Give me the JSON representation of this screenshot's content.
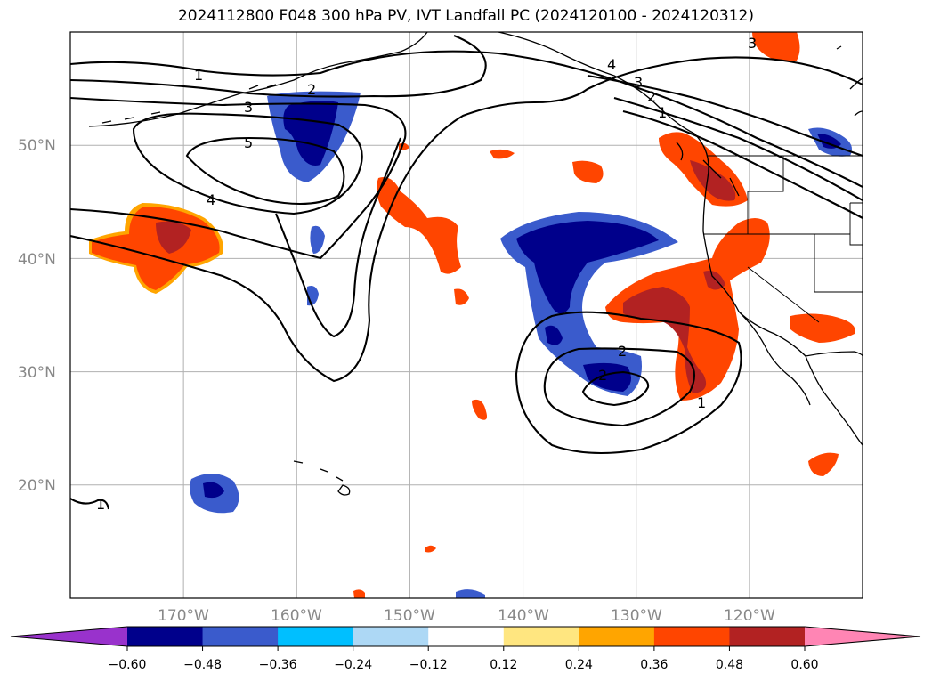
{
  "title": "2024112800 F048 300 hPa PV, IVT Landfall PC (2024120100 - 2024120312)",
  "map": {
    "projection": "equirectangular",
    "lon_range": [
      -180,
      -110
    ],
    "lat_range": [
      10,
      60
    ],
    "lat_ticks": [
      {
        "value": 50,
        "label": "50°N"
      },
      {
        "value": 40,
        "label": "40°N"
      },
      {
        "value": 30,
        "label": "30°N"
      },
      {
        "value": 20,
        "label": "20°N"
      }
    ],
    "lon_ticks": [
      {
        "value": -170,
        "label": "170°W"
      },
      {
        "value": -160,
        "label": "160°W"
      },
      {
        "value": -150,
        "label": "150°W"
      },
      {
        "value": -140,
        "label": "140°W"
      },
      {
        "value": -130,
        "label": "130°W"
      },
      {
        "value": -120,
        "label": "120°W"
      }
    ],
    "contour_labels": [
      "1",
      "2",
      "3",
      "4",
      "5",
      "2",
      "1",
      "4",
      "3",
      "2",
      "1",
      "2",
      "1",
      "3"
    ]
  },
  "colorbar": {
    "ticks": [
      "−0.60",
      "−0.48",
      "−0.36",
      "−0.24",
      "−0.12",
      "0.12",
      "0.24",
      "0.36",
      "0.48",
      "0.60"
    ],
    "colors": [
      "#9932cc",
      "#00008b",
      "#3a5bcc",
      "#00bfff",
      "#add8f5",
      "#ffffff",
      "#ffe680",
      "#ffa500",
      "#ff4500",
      "#b22222",
      "#ff85b4"
    ]
  },
  "chart_data": {
    "type": "heatmap",
    "title": "2024112800 F048 300 hPa PV, IVT Landfall PC (2024120100 - 2024120312)",
    "colorbar_levels": [
      -0.6,
      -0.48,
      -0.36,
      -0.24,
      -0.12,
      0.12,
      0.24,
      0.36,
      0.48,
      0.6
    ],
    "contour_field": "300 hPa PV",
    "contour_levels": [
      1,
      2,
      3,
      4,
      5
    ]
  }
}
